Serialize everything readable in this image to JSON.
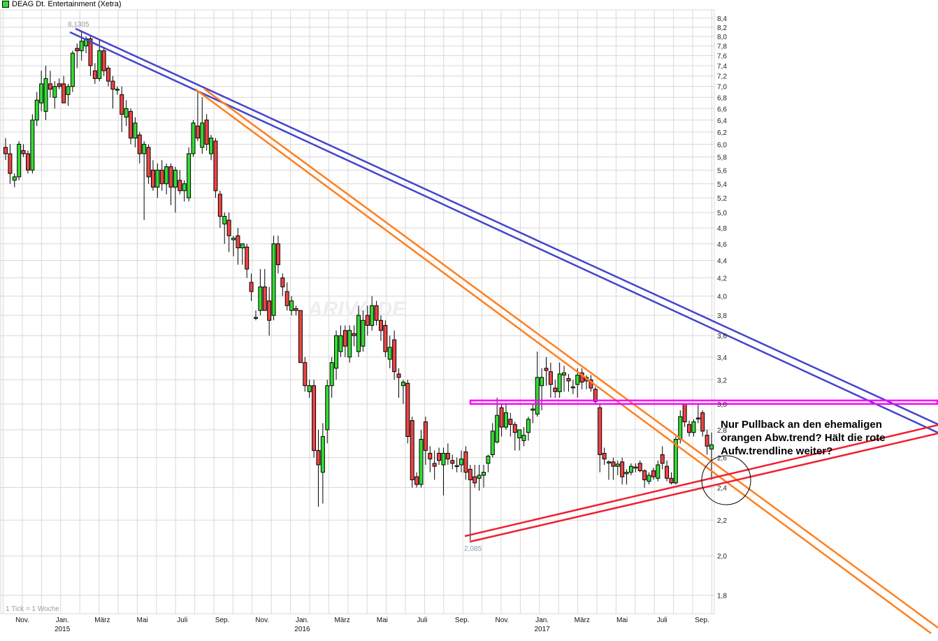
{
  "header": {
    "title": "DEAG Dt. Entertainment (Xetra)",
    "legend_color": "#33dd33"
  },
  "chart_data": {
    "type": "candlestick",
    "title": "DEAG Dt. Entertainment (Xetra)",
    "interval_note": "1 Tick = 1 Woche",
    "y_scale": "log",
    "ylim": [
      1.7,
      8.5
    ],
    "y_ticks": [
      "8,4",
      "8,2",
      "8,0",
      "7,8",
      "7,6",
      "7,4",
      "7,2",
      "7,0",
      "6,8",
      "6,6",
      "6,4",
      "6,2",
      "6,0",
      "5,8",
      "5,6",
      "5,4",
      "5,2",
      "5,0",
      "4,8",
      "4,6",
      "4,4",
      "4,2",
      "4,0",
      "3,8",
      "3,6",
      "3,4",
      "3,2",
      "3,0",
      "2,8",
      "2,6",
      "2,4",
      "2,2",
      "2,0",
      "1,8"
    ],
    "x_labels": [
      {
        "month": "Nov.",
        "year": ""
      },
      {
        "month": "Jan.",
        "year": "2015"
      },
      {
        "month": "März",
        "year": ""
      },
      {
        "month": "Mai",
        "year": ""
      },
      {
        "month": "Juli",
        "year": ""
      },
      {
        "month": "Sep.",
        "year": ""
      },
      {
        "month": "Nov.",
        "year": ""
      },
      {
        "month": "Jan.",
        "year": "2016"
      },
      {
        "month": "März",
        "year": ""
      },
      {
        "month": "Mai",
        "year": ""
      },
      {
        "month": "Juli",
        "year": ""
      },
      {
        "month": "Sep.",
        "year": ""
      },
      {
        "month": "Nov.",
        "year": ""
      },
      {
        "month": "Jan.",
        "year": "2017"
      },
      {
        "month": "März",
        "year": ""
      },
      {
        "month": "Mai",
        "year": ""
      },
      {
        "month": "Juli",
        "year": ""
      },
      {
        "month": "Sep.",
        "year": ""
      }
    ],
    "grid": true,
    "candle_fields": [
      "open",
      "high",
      "low",
      "close"
    ],
    "candles": [
      [
        5.95,
        6.1,
        5.75,
        5.85
      ],
      [
        5.85,
        6.0,
        5.4,
        5.55
      ],
      [
        5.45,
        5.55,
        5.35,
        5.5
      ],
      [
        5.5,
        6.05,
        5.45,
        6.0
      ],
      [
        5.9,
        6.0,
        5.8,
        5.85
      ],
      [
        5.85,
        5.9,
        5.55,
        5.6
      ],
      [
        5.6,
        6.5,
        5.55,
        6.4
      ],
      [
        6.4,
        6.9,
        6.3,
        6.75
      ],
      [
        6.7,
        7.3,
        6.55,
        7.05
      ],
      [
        6.55,
        7.4,
        6.4,
        7.15
      ],
      [
        7.05,
        7.3,
        6.8,
        6.95
      ],
      [
        6.8,
        7.1,
        6.6,
        7.0
      ],
      [
        7.05,
        7.15,
        6.95,
        7.0
      ],
      [
        7.05,
        7.2,
        6.75,
        6.7
      ],
      [
        6.85,
        7.05,
        6.65,
        7.0
      ],
      [
        7.0,
        7.7,
        6.9,
        7.65
      ],
      [
        7.75,
        7.85,
        7.35,
        7.7
      ],
      [
        7.7,
        8.1305,
        7.5,
        7.9
      ],
      [
        7.8,
        8.0,
        7.65,
        7.95
      ],
      [
        7.95,
        8.0,
        7.2,
        7.4
      ],
      [
        7.3,
        7.45,
        7.05,
        7.15
      ],
      [
        7.15,
        7.95,
        7.1,
        7.7
      ],
      [
        7.7,
        7.75,
        7.2,
        7.3
      ],
      [
        7.35,
        7.4,
        7.0,
        7.1
      ],
      [
        7.1,
        7.2,
        6.6,
        6.95
      ],
      [
        6.95,
        7.0,
        6.85,
        6.95
      ],
      [
        6.85,
        7.0,
        6.2,
        6.5
      ],
      [
        6.45,
        6.75,
        6.3,
        6.6
      ],
      [
        6.55,
        6.6,
        6.0,
        6.1
      ],
      [
        6.1,
        6.45,
        5.95,
        6.35
      ],
      [
        6.15,
        6.2,
        5.7,
        5.85
      ],
      [
        5.85,
        6.05,
        4.9,
        6.0
      ],
      [
        5.95,
        6.0,
        5.4,
        5.5
      ],
      [
        5.6,
        5.75,
        5.3,
        5.35
      ],
      [
        5.35,
        5.7,
        5.2,
        5.6
      ],
      [
        5.6,
        5.75,
        5.3,
        5.4
      ],
      [
        5.4,
        5.7,
        5.25,
        5.65
      ],
      [
        5.65,
        5.7,
        5.1,
        5.35
      ],
      [
        5.35,
        5.65,
        5.0,
        5.6
      ],
      [
        5.45,
        5.6,
        5.25,
        5.3
      ],
      [
        5.3,
        5.45,
        5.15,
        5.4
      ],
      [
        5.2,
        5.95,
        5.15,
        5.85
      ],
      [
        5.85,
        6.4,
        5.8,
        6.35
      ],
      [
        6.3,
        6.9,
        6.05,
        6.1
      ],
      [
        5.95,
        6.8,
        5.85,
        6.35
      ],
      [
        6.4,
        6.5,
        5.9,
        6.0
      ],
      [
        5.85,
        6.15,
        5.75,
        6.1
      ],
      [
        6.05,
        6.1,
        5.2,
        5.3
      ],
      [
        5.25,
        5.3,
        4.8,
        4.95
      ],
      [
        4.85,
        5.0,
        4.6,
        4.95
      ],
      [
        4.9,
        5.0,
        4.5,
        4.7
      ],
      [
        4.65,
        4.7,
        4.45,
        4.67
      ],
      [
        4.7,
        4.8,
        4.35,
        4.55
      ],
      [
        4.55,
        4.6,
        4.35,
        4.6
      ],
      [
        4.56,
        4.6,
        4.2,
        4.3
      ],
      [
        4.15,
        4.25,
        3.95,
        4.05
      ],
      [
        3.78,
        3.85,
        3.75,
        3.78
      ],
      [
        3.85,
        4.3,
        3.8,
        4.1
      ],
      [
        4.1,
        4.3,
        3.85,
        3.85
      ],
      [
        3.95,
        4.1,
        3.6,
        3.75
      ],
      [
        3.8,
        4.7,
        3.75,
        4.6
      ],
      [
        4.6,
        4.7,
        4.25,
        4.35
      ],
      [
        4.2,
        4.25,
        4.0,
        4.1
      ],
      [
        4.05,
        4.15,
        3.85,
        3.9
      ],
      [
        3.85,
        4.0,
        3.8,
        3.95
      ],
      [
        3.87,
        3.9,
        3.8,
        3.85
      ],
      [
        3.85,
        3.85,
        3.35,
        3.35
      ],
      [
        3.35,
        3.4,
        3.1,
        3.15
      ],
      [
        3.1,
        3.2,
        3.05,
        3.15
      ],
      [
        3.15,
        3.2,
        2.6,
        2.65
      ],
      [
        2.65,
        2.8,
        2.28,
        2.55
      ],
      [
        2.5,
        2.85,
        2.3,
        2.75
      ],
      [
        2.8,
        3.2,
        2.7,
        3.15
      ],
      [
        3.15,
        3.4,
        3.05,
        3.35
      ],
      [
        3.3,
        3.65,
        3.2,
        3.6
      ],
      [
        3.45,
        3.7,
        3.4,
        3.6
      ],
      [
        3.65,
        3.7,
        3.4,
        3.5
      ],
      [
        3.4,
        3.7,
        3.35,
        3.65
      ],
      [
        3.62,
        3.7,
        3.5,
        3.6
      ],
      [
        3.45,
        3.9,
        3.4,
        3.8
      ],
      [
        3.5,
        3.85,
        3.45,
        3.75
      ],
      [
        3.8,
        3.9,
        3.6,
        3.7
      ],
      [
        3.7,
        4.0,
        3.65,
        3.9
      ],
      [
        3.9,
        3.95,
        3.7,
        3.75
      ],
      [
        3.75,
        3.8,
        3.55,
        3.65
      ],
      [
        3.7,
        3.75,
        3.4,
        3.45
      ],
      [
        3.38,
        3.6,
        3.3,
        3.49
      ],
      [
        3.56,
        3.65,
        3.2,
        3.27
      ],
      [
        3.25,
        3.3,
        3.05,
        3.22
      ],
      [
        3.15,
        3.2,
        3.0,
        3.18
      ],
      [
        3.17,
        3.2,
        2.7,
        2.75
      ],
      [
        2.87,
        2.9,
        2.4,
        2.45
      ],
      [
        2.47,
        2.5,
        2.4,
        2.42
      ],
      [
        2.42,
        2.8,
        2.4,
        2.73
      ],
      [
        2.86,
        2.9,
        2.55,
        2.65
      ],
      [
        2.63,
        2.68,
        2.5,
        2.59
      ],
      [
        2.56,
        2.65,
        2.45,
        2.54
      ],
      [
        2.63,
        2.67,
        2.55,
        2.58
      ],
      [
        2.55,
        2.67,
        2.35,
        2.63
      ],
      [
        2.63,
        2.7,
        2.55,
        2.59
      ],
      [
        2.58,
        2.62,
        2.52,
        2.56
      ],
      [
        2.54,
        2.6,
        2.5,
        2.545
      ],
      [
        2.55,
        2.65,
        2.5,
        2.59
      ],
      [
        2.64,
        2.68,
        2.45,
        2.5
      ],
      [
        2.52,
        2.55,
        2.085,
        2.45
      ],
      [
        2.47,
        2.55,
        2.4,
        2.43
      ],
      [
        2.46,
        2.55,
        2.38,
        2.48
      ],
      [
        2.48,
        2.55,
        2.4,
        2.5
      ],
      [
        2.56,
        2.62,
        2.5,
        2.61
      ],
      [
        2.62,
        2.85,
        2.6,
        2.79
      ],
      [
        2.71,
        3.05,
        2.7,
        2.91
      ],
      [
        2.97,
        3.0,
        2.75,
        2.82
      ],
      [
        2.82,
        3.0,
        2.8,
        2.93
      ],
      [
        2.88,
        2.93,
        2.75,
        2.84
      ],
      [
        2.84,
        2.86,
        2.65,
        2.78
      ],
      [
        2.74,
        2.8,
        2.65,
        2.8
      ],
      [
        2.72,
        2.82,
        2.68,
        2.76
      ],
      [
        2.78,
        2.9,
        2.72,
        2.88
      ],
      [
        2.95,
        3.0,
        2.85,
        2.96
      ],
      [
        2.92,
        3.45,
        2.9,
        3.22
      ],
      [
        3.15,
        3.3,
        2.95,
        3.22
      ],
      [
        3.3,
        3.4,
        3.15,
        3.28
      ],
      [
        3.27,
        3.35,
        3.05,
        3.16
      ],
      [
        3.13,
        3.2,
        3.05,
        3.1
      ],
      [
        3.1,
        3.35,
        3.05,
        3.25
      ],
      [
        3.24,
        3.32,
        3.1,
        3.26
      ],
      [
        3.21,
        3.25,
        3.1,
        3.19
      ],
      [
        3.14,
        3.2,
        3.08,
        3.14
      ],
      [
        3.16,
        3.3,
        3.05,
        3.24
      ],
      [
        3.26,
        3.3,
        3.12,
        3.18
      ],
      [
        3.22,
        3.24,
        3.12,
        3.19
      ],
      [
        3.2,
        3.24,
        3.1,
        3.13
      ],
      [
        3.12,
        3.14,
        3.0,
        3.02
      ],
      [
        2.97,
        3.0,
        2.5,
        2.62
      ],
      [
        2.63,
        2.67,
        2.55,
        2.59
      ],
      [
        2.57,
        2.58,
        2.45,
        2.565
      ],
      [
        2.57,
        2.6,
        2.45,
        2.54
      ],
      [
        2.54,
        2.58,
        2.48,
        2.555
      ],
      [
        2.57,
        2.6,
        2.42,
        2.47
      ],
      [
        2.49,
        2.52,
        2.42,
        2.5
      ],
      [
        2.5,
        2.56,
        2.48,
        2.54
      ],
      [
        2.53,
        2.56,
        2.5,
        2.535
      ],
      [
        2.56,
        2.58,
        2.5,
        2.51
      ],
      [
        2.51,
        2.52,
        2.4,
        2.45
      ],
      [
        2.44,
        2.5,
        2.42,
        2.48
      ],
      [
        2.51,
        2.53,
        2.45,
        2.47
      ],
      [
        2.46,
        2.58,
        2.44,
        2.55
      ],
      [
        2.62,
        2.68,
        2.52,
        2.56
      ],
      [
        2.54,
        2.58,
        2.44,
        2.46
      ],
      [
        2.46,
        2.5,
        2.42,
        2.43
      ],
      [
        2.43,
        2.75,
        2.42,
        2.73
      ],
      [
        2.73,
        2.95,
        2.7,
        2.9
      ],
      [
        3.0,
        3.0,
        2.82,
        2.86
      ],
      [
        2.84,
        2.87,
        2.75,
        2.78
      ],
      [
        2.78,
        2.88,
        2.75,
        2.86
      ],
      [
        2.89,
        3.0,
        2.85,
        2.885
      ],
      [
        2.93,
        2.95,
        2.75,
        2.79
      ],
      [
        2.76,
        2.8,
        2.62,
        2.68
      ],
      [
        2.66,
        2.78,
        2.45,
        2.69
      ]
    ],
    "annotations": {
      "high_label": "8,1305",
      "low_label": "2,085",
      "note_lines": [
        "Nur Pullback an den ehemaligen",
        "orangen Abw.trend? Hält die rote",
        "Aufw.trendline weiter?"
      ],
      "watermark": "ARIVA.DE"
    },
    "colors": {
      "up": "#33dd33",
      "down": "#ee4444",
      "downtrend_long": "#4444cc",
      "downtrend_mid": "#ff7f1e",
      "uptrend": "#ee2233",
      "resistance": "#ff00ff",
      "grid": "#d8d8d8"
    },
    "resistance_level": 3.0
  }
}
